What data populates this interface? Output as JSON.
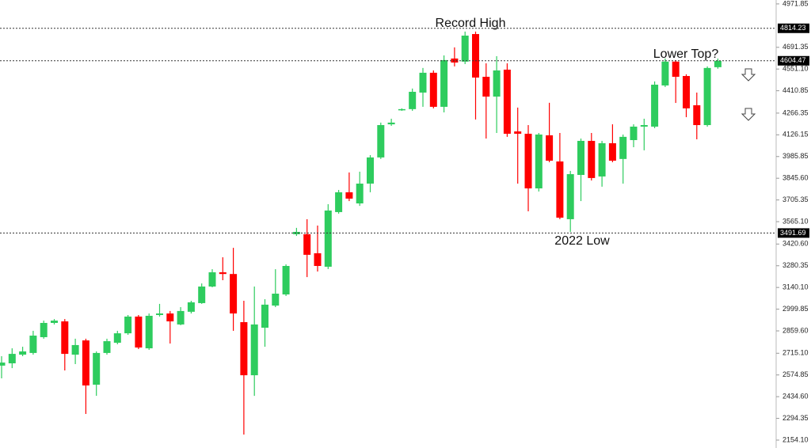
{
  "chart_data": {
    "type": "candlestick",
    "up_color": "#2ecc5e",
    "down_color": "#ff0000",
    "ylim": [
      2103,
      4997
    ],
    "yticks": [
      4971.85,
      4691.35,
      {
        "value": 4551.1,
        "label": "4551.10"
      },
      4410.85,
      4266.35,
      4126.15,
      3985.85,
      {
        "value": 3845.6,
        "label": "3845.60"
      },
      3705.35,
      {
        "value": 3565.1,
        "label": "3565.10"
      },
      {
        "value": 3420.6,
        "label": "3420.60"
      },
      3280.35,
      {
        "value": 3140.1,
        "label": "3140.10"
      },
      2999.85,
      {
        "value": 2859.6,
        "label": "2859.60"
      },
      {
        "value": 2715.1,
        "label": "2715.10"
      },
      2574.85,
      {
        "value": 2434.6,
        "label": "2434.60"
      },
      2294.35,
      {
        "value": 2154.1,
        "label": "2154.10"
      }
    ],
    "hlines": [
      4814.23,
      4604.47,
      3491.69
    ],
    "annotations": [
      "Record High",
      "Lower Top?",
      "2022 Low"
    ],
    "open": [
      2635,
      2650,
      2706,
      2717,
      2819,
      2911,
      2921,
      2706,
      2798,
      2512,
      2717,
      2783,
      2844,
      2952,
      2747,
      2962,
      2972,
      2901,
      2983,
      3039,
      3146,
      3238,
      3227,
      2916,
      2573,
      2880,
      3023,
      3095,
      3484,
      3484,
      3361,
      3274,
      3627,
      3755,
      3683,
      3811,
      3980,
      4194,
      4286,
      4292,
      4399,
      4527,
      4307,
      4619,
      4599,
      4777,
      4501,
      4373,
      4547,
      4148,
      4133,
      3780,
      4123,
      3954,
      3581,
      3867,
      4087,
      3857,
      4072,
      3970,
      4092,
      4179,
      4179,
      4445,
      4599,
      4506,
      4317,
      4189,
      4563
    ],
    "high": [
      2696,
      2747,
      2757,
      2860,
      2926,
      2936,
      2936,
      2809,
      2809,
      2727,
      2809,
      2860,
      2962,
      2962,
      2972,
      3034,
      2988,
      3013,
      3054,
      3166,
      3258,
      3335,
      3396,
      3054,
      3146,
      3064,
      3258,
      3289,
      3525,
      3581,
      3540,
      3678,
      3770,
      3883,
      3888,
      3995,
      4205,
      4230,
      4297,
      4425,
      4558,
      4542,
      4639,
      4691,
      4793,
      4793,
      4588,
      4634,
      4588,
      4302,
      4189,
      4138,
      4333,
      4138,
      3893,
      4102,
      4138,
      4087,
      4194,
      4128,
      4194,
      4230,
      4471,
      4619,
      4609,
      4517,
      4399,
      4568,
      4619
    ],
    "low": [
      2553,
      2619,
      2696,
      2706,
      2809,
      2901,
      2604,
      2645,
      2323,
      2440,
      2706,
      2773,
      2834,
      2742,
      2737,
      2952,
      2778,
      2896,
      2972,
      3034,
      3141,
      3187,
      2860,
      2190,
      2440,
      2757,
      3013,
      3085,
      3473,
      3207,
      3243,
      3259,
      3617,
      3698,
      3667,
      3755,
      3970,
      4184,
      4281,
      4281,
      4307,
      4297,
      4271,
      4568,
      4583,
      4225,
      4102,
      4138,
      4113,
      3811,
      3632,
      3760,
      3949,
      3581,
      3499,
      3698,
      3831,
      3791,
      3949,
      3811,
      4046,
      4026,
      4169,
      4435,
      4332,
      4240,
      4097,
      4179,
      4553
    ],
    "close": [
      2655,
      2711,
      2727,
      2829,
      2911,
      2926,
      2711,
      2768,
      2507,
      2717,
      2793,
      2844,
      2952,
      2752,
      2957,
      2972,
      2921,
      2988,
      3044,
      3146,
      3238,
      3227,
      2972,
      2573,
      2901,
      3029,
      3100,
      3279,
      3499,
      3351,
      3279,
      3637,
      3755,
      3714,
      3811,
      3980,
      4189,
      4205,
      4292,
      4404,
      4527,
      4307,
      4609,
      4593,
      4767,
      4496,
      4373,
      4542,
      4133,
      4133,
      3780,
      4128,
      3959,
      3591,
      3872,
      4087,
      3847,
      4072,
      3959,
      4113,
      4179,
      4189,
      4450,
      4599,
      4501,
      4297,
      4189,
      4558,
      4604
    ]
  }
}
